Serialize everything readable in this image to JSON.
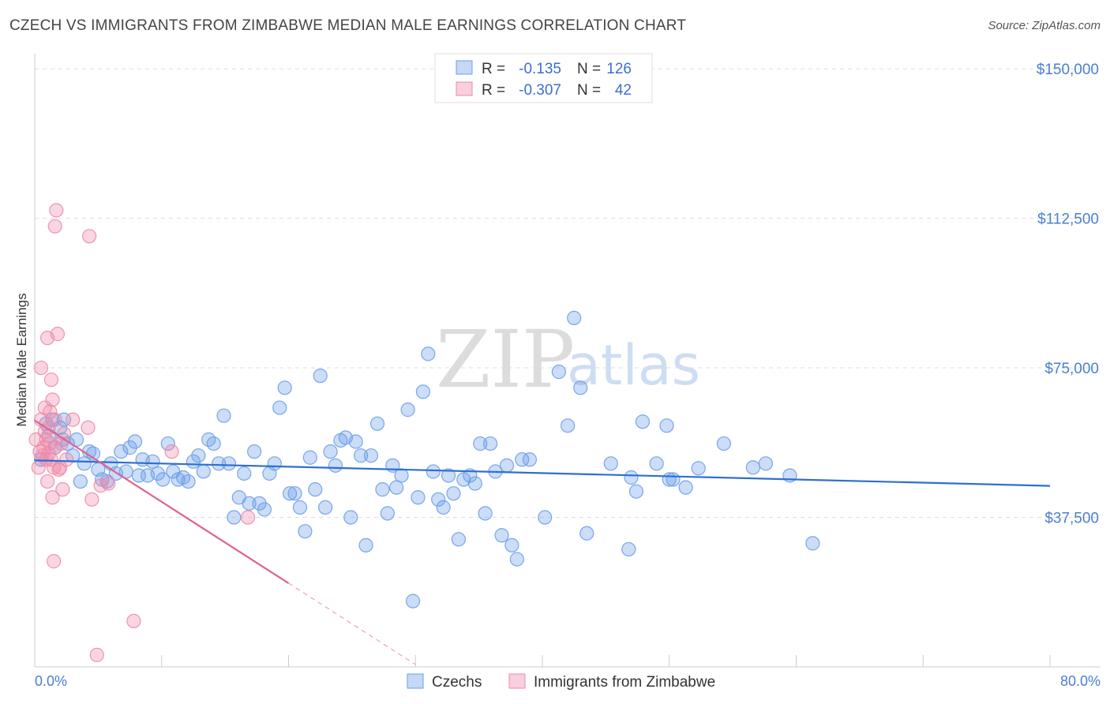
{
  "header": {
    "title": "CZECH VS IMMIGRANTS FROM ZIMBABWE MEDIAN MALE EARNINGS CORRELATION CHART",
    "source": "Source: ZipAtlas.com"
  },
  "watermark": {
    "zip": "ZIP",
    "atlas": "atlas"
  },
  "stats": {
    "r_label": "R =",
    "n_label": "N =",
    "rows": [
      {
        "r": "-0.135",
        "n": "126"
      },
      {
        "r": "-0.307",
        "n": "42"
      }
    ]
  },
  "chart_data": {
    "type": "scatter",
    "title": "CZECH VS IMMIGRANTS FROM ZIMBABWE MEDIAN MALE EARNINGS CORRELATION CHART",
    "xlabel": "",
    "ylabel": "Median Male Earnings",
    "xlim": [
      0,
      80
    ],
    "ylim": [
      0,
      152000
    ],
    "x_tick_labels": [
      "0.0%",
      "80.0%"
    ],
    "y_ticks": [
      37500,
      75000,
      112500,
      150000
    ],
    "y_tick_labels": [
      "$37,500",
      "$75,000",
      "$112,500",
      "$150,000"
    ],
    "grid": true,
    "legend_position": "bottom-center",
    "colors": {
      "czechs": "#6b9ee8",
      "zimbabwe": "#ee8aaa",
      "czech_line": "#2f6fd0",
      "zim_line": "#e0628e"
    },
    "series": [
      {
        "name": "Czechs",
        "r": -0.135,
        "n": 126,
        "trend": {
          "x0": 0,
          "y0": 51800,
          "x1": 80,
          "y1": 45400
        },
        "points": [
          [
            0.5,
            52000
          ],
          [
            0.9,
            61000
          ],
          [
            1.1,
            58000
          ],
          [
            1.4,
            62000
          ],
          [
            1.6,
            55000
          ],
          [
            2.0,
            60000
          ],
          [
            2.3,
            62000
          ],
          [
            2.6,
            56000
          ],
          [
            3.0,
            53000
          ],
          [
            3.3,
            57000
          ],
          [
            3.6,
            46500
          ],
          [
            3.9,
            51000
          ],
          [
            4.3,
            54000
          ],
          [
            4.6,
            53500
          ],
          [
            5.0,
            49500
          ],
          [
            5.3,
            47000
          ],
          [
            5.7,
            46500
          ],
          [
            6.0,
            51000
          ],
          [
            6.4,
            48500
          ],
          [
            6.8,
            54000
          ],
          [
            7.2,
            49000
          ],
          [
            7.5,
            55000
          ],
          [
            7.9,
            56500
          ],
          [
            8.2,
            48000
          ],
          [
            8.5,
            52000
          ],
          [
            8.9,
            48000
          ],
          [
            9.3,
            51500
          ],
          [
            9.7,
            48500
          ],
          [
            10.1,
            47000
          ],
          [
            10.5,
            56000
          ],
          [
            10.9,
            49000
          ],
          [
            11.3,
            47000
          ],
          [
            11.7,
            47500
          ],
          [
            12.1,
            46500
          ],
          [
            12.5,
            51500
          ],
          [
            12.9,
            53000
          ],
          [
            13.3,
            49000
          ],
          [
            13.7,
            57000
          ],
          [
            14.1,
            56000
          ],
          [
            14.5,
            51000
          ],
          [
            14.9,
            63000
          ],
          [
            15.3,
            51000
          ],
          [
            15.7,
            37500
          ],
          [
            16.1,
            42500
          ],
          [
            16.5,
            48500
          ],
          [
            16.9,
            41000
          ],
          [
            17.3,
            54000
          ],
          [
            17.7,
            41000
          ],
          [
            18.1,
            39500
          ],
          [
            18.5,
            48500
          ],
          [
            18.9,
            51000
          ],
          [
            19.3,
            65000
          ],
          [
            19.7,
            70000
          ],
          [
            20.1,
            43500
          ],
          [
            20.5,
            43500
          ],
          [
            20.9,
            40000
          ],
          [
            21.3,
            34000
          ],
          [
            21.7,
            52500
          ],
          [
            22.1,
            44500
          ],
          [
            22.5,
            73000
          ],
          [
            22.9,
            40000
          ],
          [
            23.3,
            54000
          ],
          [
            23.7,
            50500
          ],
          [
            24.1,
            56800
          ],
          [
            24.5,
            57500
          ],
          [
            24.9,
            37500
          ],
          [
            25.3,
            56500
          ],
          [
            25.7,
            53000
          ],
          [
            26.1,
            30500
          ],
          [
            26.5,
            53000
          ],
          [
            27.0,
            61000
          ],
          [
            27.4,
            44500
          ],
          [
            27.8,
            38500
          ],
          [
            28.2,
            50500
          ],
          [
            28.5,
            45000
          ],
          [
            28.9,
            48000
          ],
          [
            29.4,
            64500
          ],
          [
            29.8,
            16500
          ],
          [
            30.2,
            42500
          ],
          [
            30.6,
            69000
          ],
          [
            31.0,
            78500
          ],
          [
            31.4,
            49000
          ],
          [
            31.8,
            42000
          ],
          [
            32.2,
            40000
          ],
          [
            32.6,
            48000
          ],
          [
            33.0,
            43500
          ],
          [
            33.4,
            32000
          ],
          [
            33.8,
            47000
          ],
          [
            34.3,
            48000
          ],
          [
            34.7,
            46000
          ],
          [
            35.1,
            56000
          ],
          [
            35.5,
            38500
          ],
          [
            35.9,
            56000
          ],
          [
            36.3,
            49000
          ],
          [
            36.8,
            33000
          ],
          [
            37.2,
            50500
          ],
          [
            37.6,
            30500
          ],
          [
            38.0,
            27000
          ],
          [
            38.4,
            52000
          ],
          [
            39.0,
            52000
          ],
          [
            40.2,
            37500
          ],
          [
            41.3,
            74000
          ],
          [
            42.0,
            60500
          ],
          [
            42.5,
            87500
          ],
          [
            43.0,
            70000
          ],
          [
            43.5,
            33500
          ],
          [
            45.4,
            51000
          ],
          [
            46.8,
            29500
          ],
          [
            47.0,
            47500
          ],
          [
            47.4,
            44000
          ],
          [
            47.9,
            61500
          ],
          [
            49.0,
            51000
          ],
          [
            49.8,
            60500
          ],
          [
            50.0,
            47000
          ],
          [
            50.3,
            47000
          ],
          [
            51.3,
            45000
          ],
          [
            52.3,
            49800
          ],
          [
            54.3,
            56000
          ],
          [
            56.6,
            50000
          ],
          [
            57.6,
            51000
          ],
          [
            59.5,
            48000
          ],
          [
            61.3,
            31000
          ],
          [
            2.2,
            57000
          ]
        ]
      },
      {
        "name": "Immigrants from Zimbabwe",
        "r": -0.307,
        "n": 42,
        "trend": {
          "x0": 0,
          "y0": 61800,
          "x1": 20,
          "y1": 21000,
          "x_dash_end": 30,
          "y_dash_end": 600
        },
        "points": [
          [
            0.1,
            57000
          ],
          [
            0.3,
            50000
          ],
          [
            0.4,
            54000
          ],
          [
            0.5,
            62000
          ],
          [
            0.5,
            75000
          ],
          [
            0.6,
            53000
          ],
          [
            0.7,
            55000
          ],
          [
            0.8,
            59000
          ],
          [
            0.8,
            65000
          ],
          [
            0.9,
            57000
          ],
          [
            0.9,
            52000
          ],
          [
            1.0,
            46500
          ],
          [
            1.0,
            82500
          ],
          [
            1.1,
            60000
          ],
          [
            1.1,
            53500
          ],
          [
            1.2,
            64000
          ],
          [
            1.2,
            56000
          ],
          [
            1.3,
            72000
          ],
          [
            1.3,
            52000
          ],
          [
            1.4,
            67000
          ],
          [
            1.4,
            42500
          ],
          [
            1.5,
            50000
          ],
          [
            1.5,
            26500
          ],
          [
            1.6,
            55000
          ],
          [
            1.6,
            62000
          ],
          [
            1.6,
            110500
          ],
          [
            1.7,
            114500
          ],
          [
            1.8,
            83500
          ],
          [
            1.9,
            49500
          ],
          [
            2.0,
            50000
          ],
          [
            2.1,
            56000
          ],
          [
            2.2,
            44500
          ],
          [
            2.3,
            58500
          ],
          [
            2.5,
            52000
          ],
          [
            3.0,
            62000
          ],
          [
            4.2,
            60000
          ],
          [
            4.5,
            42000
          ],
          [
            5.2,
            45500
          ],
          [
            5.8,
            46000
          ],
          [
            7.8,
            11500
          ],
          [
            10.8,
            54000
          ],
          [
            16.8,
            37500
          ],
          [
            4.3,
            108000
          ],
          [
            4.9,
            3000
          ]
        ]
      }
    ]
  },
  "legend": {
    "items": [
      "Czechs",
      "Immigrants from Zimbabwe"
    ]
  }
}
